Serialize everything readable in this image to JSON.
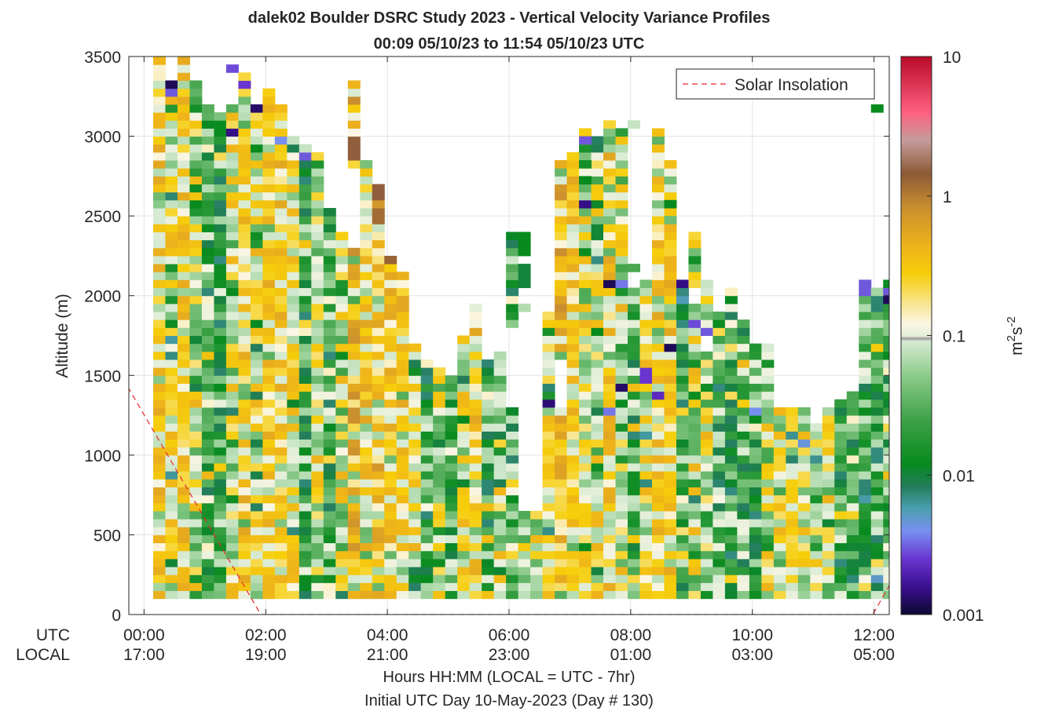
{
  "chart_data": {
    "type": "heatmap",
    "title": "dalek02 Boulder DSRC Study 2023 - Vertical Velocity Variance Profiles",
    "subtitle": "00:09 05/10/23 to 11:54 05/10/23  UTC",
    "ylabel": "Altitude (m)",
    "xlabel": "Hours HH:MM  (LOCAL = UTC - 7hr)",
    "xlabel2": "Initial UTC Day 10-May-2023 (Day # 130)",
    "x_row_labels": [
      "UTC",
      "LOCAL"
    ],
    "ylim": [
      0,
      3500
    ],
    "yticks": [
      "0",
      "500",
      "1000",
      "1500",
      "2000",
      "2500",
      "3000",
      "3500"
    ],
    "y_tick_values": [
      0,
      500,
      1000,
      1500,
      2000,
      2500,
      3000,
      3500
    ],
    "xlim": [
      -0.25,
      12.25
    ],
    "x_tick_values": [
      0,
      2,
      4,
      6,
      8,
      10,
      12
    ],
    "xticks_utc": [
      "00:00",
      "02:00",
      "04:00",
      "06:00",
      "08:00",
      "10:00",
      "12:00"
    ],
    "xticks_local": [
      "17:00",
      "19:00",
      "21:00",
      "23:00",
      "01:00",
      "03:00",
      "05:00"
    ],
    "grid": true,
    "legend": {
      "placement": "top-right",
      "entries": [
        "Solar Insolation"
      ]
    },
    "colorbar": {
      "label_base": "m",
      "label_exp1": "2",
      "label_mid": "s",
      "label_exp2": "-2",
      "scale": "log",
      "range": [
        0.001,
        10
      ],
      "ticks": [
        "10",
        "1",
        "0.1",
        "0.01",
        "0.001"
      ],
      "tick_values": [
        10,
        1,
        0.1,
        0.01,
        0.001
      ],
      "marker_value": 0.095
    },
    "series": [
      {
        "name": "Solar Insolation",
        "type": "line",
        "style": "dashed",
        "color": "#e8262a",
        "x": [
          -0.5,
          1.92,
          11.98,
          12.5
        ],
        "y": [
          1580,
          0,
          0,
          350
        ]
      }
    ],
    "variance": {
      "units": "m^2 s^-2",
      "time_start": 0.15,
      "time_step": 0.2,
      "altitude_start": 100,
      "altitude_step": 50,
      "profiles": [
        {
          "top": 3500,
          "style": 0
        },
        {
          "top": 3350,
          "style": 1
        },
        {
          "top": 3500,
          "style": 0
        },
        {
          "top": 3350,
          "style": 2
        },
        {
          "top": 3200,
          "style": 3
        },
        {
          "top": 3150,
          "style": 3
        },
        {
          "top": 3200,
          "style": 2
        },
        {
          "top": 3400,
          "style": 0
        },
        {
          "top": 3200,
          "style": 1
        },
        {
          "top": 3300,
          "style": 0
        },
        {
          "top": 3200,
          "style": 0
        },
        {
          "top": 3000,
          "style": 1
        },
        {
          "top": 2950,
          "style": 3
        },
        {
          "top": 2900,
          "style": 2
        },
        {
          "top": 2550,
          "style": 3
        },
        {
          "top": 2400,
          "style": 2
        },
        {
          "top": 3350,
          "style": 4
        },
        {
          "top": 2850,
          "style": 0
        },
        {
          "top": 2700,
          "style": 4
        },
        {
          "top": 2250,
          "style": 0
        },
        {
          "top": 2150,
          "style": 0
        },
        {
          "top": 1700,
          "style": 1
        },
        {
          "top": 1600,
          "style": 3
        },
        {
          "top": 1550,
          "style": 2
        },
        {
          "top": 1500,
          "style": 3
        },
        {
          "top": 1750,
          "style": 1
        },
        {
          "top": 1950,
          "style": 0
        },
        {
          "top": 1600,
          "style": 3
        },
        {
          "top": 1650,
          "style": 2
        },
        {
          "top": 2400,
          "style": 3
        },
        {
          "top": 650,
          "style": 2
        },
        {
          "top": 650,
          "style": 2
        },
        {
          "top": 1900,
          "style": 1
        },
        {
          "top": 2850,
          "style": 4
        },
        {
          "top": 2900,
          "style": 0
        },
        {
          "top": 3050,
          "style": 2
        },
        {
          "top": 3000,
          "style": 2
        },
        {
          "top": 3100,
          "style": 0
        },
        {
          "top": 3050,
          "style": 2
        },
        {
          "top": 2200,
          "style": 3
        },
        {
          "top": 2100,
          "style": 1
        },
        {
          "top": 3050,
          "style": 0
        },
        {
          "top": 2850,
          "style": 0
        },
        {
          "top": 2100,
          "style": 3
        },
        {
          "top": 2400,
          "style": 2
        },
        {
          "top": 2100,
          "style": 2
        },
        {
          "top": 1900,
          "style": 3
        },
        {
          "top": 2050,
          "style": 3
        },
        {
          "top": 1850,
          "style": 3
        },
        {
          "top": 1700,
          "style": 3
        },
        {
          "top": 1700,
          "style": 2
        },
        {
          "top": 1300,
          "style": 2
        },
        {
          "top": 1300,
          "style": 1
        },
        {
          "top": 1300,
          "style": 2
        },
        {
          "top": 1200,
          "style": 1
        },
        {
          "top": 1300,
          "style": 2
        },
        {
          "top": 1350,
          "style": 3
        },
        {
          "top": 1400,
          "style": 3
        },
        {
          "top": 2100,
          "style": 3
        },
        {
          "top": 2050,
          "style": 3
        },
        {
          "top": 2100,
          "style": 3
        }
      ],
      "blank_cells": [
        {
          "profile": 16,
          "from": 2300,
          "to": 2800
        },
        {
          "profile": 29,
          "from": 1300,
          "to": 1800
        },
        {
          "profile": 33,
          "from": 1300,
          "to": 1600
        },
        {
          "profile": 39,
          "from": 2050,
          "to": 2150
        },
        {
          "profile": 44,
          "from": 1950,
          "to": 2050
        },
        {
          "profile": 45,
          "from": 1650,
          "to": 1750
        }
      ],
      "high_cells": [
        {
          "profile": 16,
          "from": 2850,
          "to": 3000,
          "value": 1.5
        },
        {
          "profile": 18,
          "from": 2600,
          "to": 2700,
          "value": 1.5
        },
        {
          "profile": 18,
          "from": 2450,
          "to": 2550,
          "value": 1.2
        },
        {
          "profile": 19,
          "from": 2200,
          "to": 2300,
          "value": 1.3
        }
      ],
      "low_cells": [
        {
          "profile": 1,
          "from": 3250,
          "to": 3300,
          "value": 0.003
        },
        {
          "profile": 1,
          "from": 3300,
          "to": 3350,
          "value": 0.0012
        },
        {
          "profile": 6,
          "from": 3000,
          "to": 3050,
          "value": 0.0015
        },
        {
          "profile": 5,
          "from": 3150,
          "to": 3200,
          "value": 0.0025
        },
        {
          "profile": 8,
          "from": 3150,
          "to": 3200,
          "value": 0.0013
        },
        {
          "profile": 7,
          "from": 3300,
          "to": 3350,
          "value": 0.0025
        },
        {
          "profile": 10,
          "from": 2950,
          "to": 3000,
          "value": 0.004
        },
        {
          "profile": 12,
          "from": 2850,
          "to": 2900,
          "value": 0.003
        },
        {
          "profile": 32,
          "from": 1300,
          "to": 1350,
          "value": 0.0014
        },
        {
          "profile": 35,
          "from": 2550,
          "to": 2600,
          "value": 0.0015
        },
        {
          "profile": 38,
          "from": 1400,
          "to": 1450,
          "value": 0.0013
        },
        {
          "profile": 37,
          "from": 2050,
          "to": 2100,
          "value": 0.0012
        },
        {
          "profile": 38,
          "from": 2050,
          "to": 2100,
          "value": 0.0035
        },
        {
          "profile": 37,
          "from": 1250,
          "to": 1300,
          "value": 0.0035
        },
        {
          "profile": 40,
          "from": 1450,
          "to": 1550,
          "value": 0.0025
        },
        {
          "profile": 41,
          "from": 1350,
          "to": 1400,
          "value": 0.0022
        },
        {
          "profile": 42,
          "from": 1650,
          "to": 1700,
          "value": 0.0012
        },
        {
          "profile": 43,
          "from": 2050,
          "to": 2100,
          "value": 0.0015
        },
        {
          "profile": 43,
          "from": 1950,
          "to": 2000,
          "value": 0.0055
        },
        {
          "profile": 44,
          "from": 1800,
          "to": 1850,
          "value": 0.0028
        },
        {
          "profile": 45,
          "from": 1750,
          "to": 1800,
          "value": 0.003
        },
        {
          "profile": 49,
          "from": 1250,
          "to": 1300,
          "value": 0.004
        },
        {
          "profile": 53,
          "from": 1050,
          "to": 1100,
          "value": 0.0045
        },
        {
          "profile": 54,
          "from": 1350,
          "to": 1400,
          "value": 0.0025
        },
        {
          "profile": 55,
          "from": 1650,
          "to": 1750,
          "value": 0.0035
        },
        {
          "profile": 55,
          "from": 1800,
          "to": 1850,
          "value": 0.0012
        },
        {
          "profile": 58,
          "from": 2000,
          "to": 2100,
          "value": 0.003
        },
        {
          "profile": 58,
          "from": 700,
          "to": 750,
          "value": 0.006
        },
        {
          "profile": 59,
          "from": 200,
          "to": 250,
          "value": 0.005
        },
        {
          "profile": 60,
          "from": 1950,
          "to": 2000,
          "value": 0.0012
        },
        {
          "profile": 60,
          "from": 2000,
          "to": 2050,
          "value": 0.003
        }
      ],
      "floating_cells": [
        {
          "profile": 6,
          "from": 3400,
          "to": 3450,
          "value": 0.0028
        },
        {
          "profile": 30,
          "from": 2250,
          "to": 2400,
          "value": 0.012
        },
        {
          "profile": 30,
          "from": 2050,
          "to": 2200,
          "value": 0.01
        },
        {
          "profile": 30,
          "from": 1900,
          "to": 1950,
          "value": 0.07
        },
        {
          "profile": 35,
          "from": 2700,
          "to": 2750,
          "value": 0.012
        },
        {
          "profile": 35,
          "from": 2800,
          "to": 2850,
          "value": 0.014
        },
        {
          "profile": 35,
          "from": 2950,
          "to": 3000,
          "value": 0.003
        },
        {
          "profile": 38,
          "from": 3000,
          "to": 3050,
          "value": 0.02
        },
        {
          "profile": 39,
          "from": 3050,
          "to": 3100,
          "value": 0.08
        },
        {
          "profile": 42,
          "from": 2550,
          "to": 2600,
          "value": 0.012
        },
        {
          "profile": 42,
          "from": 2450,
          "to": 2500,
          "value": 0.04
        },
        {
          "profile": 59,
          "from": 3150,
          "to": 3200,
          "value": 0.012
        }
      ]
    }
  }
}
